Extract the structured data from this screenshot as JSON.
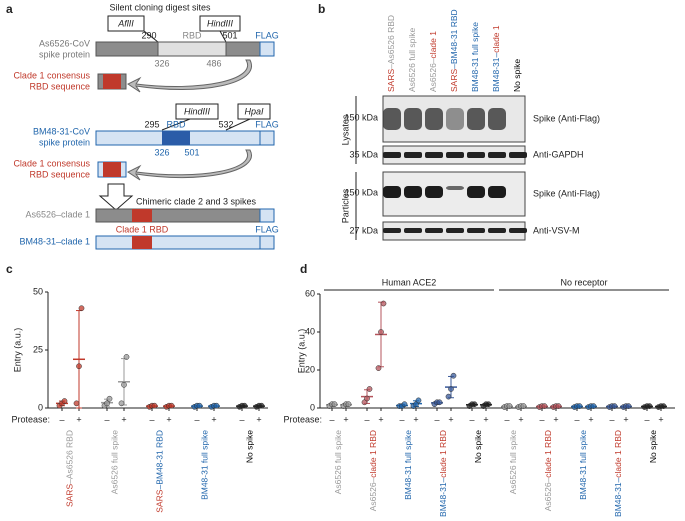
{
  "panels": [
    "a",
    "b",
    "c",
    "d"
  ],
  "diagram_a": {
    "title": "Silent cloning digest sites",
    "spike1": {
      "name": [
        "As6526-CoV",
        "spike protein"
      ],
      "sites": [
        "AflII",
        "HindIII"
      ],
      "start": 290,
      "rbd": "RBD",
      "end": 501,
      "rbd_start": 326,
      "rbd_end": 486,
      "flag": "FLAG"
    },
    "insert1": [
      "Clade 1 consensus",
      "RBD sequence"
    ],
    "spike2": {
      "name": [
        "BM48-31-CoV",
        "spike protein"
      ],
      "sites": [
        "HindIII",
        "HpaI"
      ],
      "start": 295,
      "rbd": "RBD",
      "end": 532,
      "rbd_start": 326,
      "rbd_end": 501,
      "flag": "FLAG"
    },
    "insert2": [
      "Clade 1 consensus",
      "RBD sequence"
    ],
    "chimera_title": "Chimeric clade 2 and 3 spikes",
    "chimera1": "As6526–clade 1",
    "chimera_rbd": "Clade 1 RBD",
    "chimera2": "BM48-31–clade 1",
    "chimera_flag": "FLAG"
  },
  "blot_b": {
    "lanes": [
      [
        {
          "text": "SARS",
          "color": "#c0392b"
        },
        {
          "text": "–As6526 RBD",
          "color": "#999999"
        }
      ],
      [
        {
          "text": "As6526 full spike",
          "color": "#999999"
        }
      ],
      [
        {
          "text": "As6526–",
          "color": "#999999"
        },
        {
          "text": "clade 1",
          "color": "#c0392b"
        }
      ],
      [
        {
          "text": "SARS",
          "color": "#c0392b"
        },
        {
          "text": "–BM48-31 RBD",
          "color": "#2166ac"
        }
      ],
      [
        {
          "text": "BM48-31 full spike",
          "color": "#2166ac"
        }
      ],
      [
        {
          "text": "BM48-31–",
          "color": "#2166ac"
        },
        {
          "text": "clade 1",
          "color": "#c0392b"
        }
      ],
      [
        {
          "text": "No spike",
          "color": "#000000"
        }
      ]
    ],
    "sections": [
      "Lysates",
      "Particles"
    ],
    "sizes": [
      "150 kDa",
      "35 kDa",
      "150 kDa",
      "27 kDa"
    ],
    "antibodies": [
      "Spike (Anti-Flag)",
      "Anti-GAPDH",
      "Spike (Anti-Flag)",
      "Anti-VSV-M"
    ]
  },
  "chart_data": [
    {
      "type": "dotplot",
      "y_label": "Entry (a.u.)",
      "ylim": [
        0,
        50
      ],
      "yticks": [
        0,
        25,
        50
      ],
      "condition_title": "Protease:",
      "conditions": [
        "–",
        "+"
      ],
      "groups": [
        {
          "label": [
            {
              "text": "SARS",
              "color": "#c0392b"
            },
            {
              "text": "–As6526 RBD",
              "color": "#999999"
            }
          ],
          "color": "#c0392b",
          "series": [
            {
              "points": [
                1,
                2,
                3
              ],
              "mean": 2,
              "sd": 1
            },
            {
              "points": [
                2,
                18,
                43
              ],
              "mean": 21,
              "sd": 21
            }
          ]
        },
        {
          "label": [
            {
              "text": "As6526 full spike",
              "color": "#999999"
            }
          ],
          "color": "#999999",
          "series": [
            {
              "points": [
                1,
                2,
                4
              ],
              "mean": 2.3,
              "sd": 1.5
            },
            {
              "points": [
                2,
                10,
                22
              ],
              "mean": 11.3,
              "sd": 10
            }
          ]
        },
        {
          "label": [
            {
              "text": "SARS",
              "color": "#c0392b"
            },
            {
              "text": "–BM48-31 RBD",
              "color": "#2166ac"
            }
          ],
          "color": "#c0392b",
          "series": [
            {
              "points": [
                0.5,
                1,
                1
              ],
              "mean": 0.8,
              "sd": 0.3
            },
            {
              "points": [
                0.5,
                1,
                1
              ],
              "mean": 0.8,
              "sd": 0.3
            }
          ]
        },
        {
          "label": [
            {
              "text": "BM48-31 full spike",
              "color": "#2166ac"
            }
          ],
          "color": "#2166ac",
          "series": [
            {
              "points": [
                0.5,
                1,
                1
              ],
              "mean": 0.8,
              "sd": 0.3
            },
            {
              "points": [
                0.5,
                1,
                1
              ],
              "mean": 0.8,
              "sd": 0.3
            }
          ]
        },
        {
          "label": [
            {
              "text": "No spike",
              "color": "#000000"
            }
          ],
          "color": "#222222",
          "series": [
            {
              "points": [
                0.5,
                1,
                1
              ],
              "mean": 0.8,
              "sd": 0.3
            },
            {
              "points": [
                0.5,
                1,
                1
              ],
              "mean": 0.8,
              "sd": 0.3
            }
          ]
        }
      ]
    },
    {
      "type": "dotplot",
      "y_label": "Entry (a.u.)",
      "ylim": [
        0,
        60
      ],
      "yticks": [
        0,
        20,
        40,
        60
      ],
      "condition_title": "Protease:",
      "conditions": [
        "–",
        "+"
      ],
      "receptors": [
        {
          "label": "Human ACE2",
          "groups": [
            {
              "label": [
                {
                  "text": "As6526 full spike",
                  "color": "#999999"
                }
              ],
              "color": "#999999",
              "series": [
                {
                  "points": [
                    1,
                    2,
                    2
                  ],
                  "mean": 1.7,
                  "sd": 0.6
                },
                {
                  "points": [
                    1,
                    2,
                    2
                  ],
                  "mean": 1.7,
                  "sd": 0.6
                }
              ]
            },
            {
              "label": [
                {
                  "text": "As6526–",
                  "color": "#999999"
                },
                {
                  "text": "clade 1 RBD",
                  "color": "#c0392b"
                }
              ],
              "color": "#b5545c",
              "series": [
                {
                  "points": [
                    3,
                    5,
                    10
                  ],
                  "mean": 6,
                  "sd": 3.6
                },
                {
                  "points": [
                    21,
                    40,
                    55
                  ],
                  "mean": 38.7,
                  "sd": 17
                }
              ]
            },
            {
              "label": [
                {
                  "text": "BM48-31 full spike",
                  "color": "#2166ac"
                }
              ],
              "color": "#2166ac",
              "series": [
                {
                  "points": [
                    1,
                    1,
                    2
                  ],
                  "mean": 1.3,
                  "sd": 0.6
                },
                {
                  "points": [
                    1,
                    2,
                    4
                  ],
                  "mean": 2.3,
                  "sd": 1.5
                }
              ]
            },
            {
              "label": [
                {
                  "text": "BM48-31–",
                  "color": "#2166ac"
                },
                {
                  "text": "clade 1 RBD",
                  "color": "#c0392b"
                }
              ],
              "color": "#3a5a9a",
              "series": [
                {
                  "points": [
                    2,
                    3,
                    3
                  ],
                  "mean": 2.7,
                  "sd": 0.6
                },
                {
                  "points": [
                    6,
                    10,
                    17
                  ],
                  "mean": 11,
                  "sd": 5.6
                }
              ]
            },
            {
              "label": [
                {
                  "text": "No spike",
                  "color": "#000000"
                }
              ],
              "color": "#222222",
              "series": [
                {
                  "points": [
                    1,
                    2,
                    2
                  ],
                  "mean": 1.7,
                  "sd": 0.6
                },
                {
                  "points": [
                    1,
                    2,
                    2
                  ],
                  "mean": 1.7,
                  "sd": 0.6
                }
              ]
            }
          ]
        },
        {
          "label": "No receptor",
          "groups": [
            {
              "label": [
                {
                  "text": "As6526 full spike",
                  "color": "#999999"
                }
              ],
              "color": "#999999",
              "series": [
                {
                  "points": [
                    0.5,
                    1,
                    1
                  ],
                  "mean": 0.8,
                  "sd": 0.3
                },
                {
                  "points": [
                    0.5,
                    1,
                    1
                  ],
                  "mean": 0.8,
                  "sd": 0.3
                }
              ]
            },
            {
              "label": [
                {
                  "text": "As6526–",
                  "color": "#999999"
                },
                {
                  "text": "clade 1 RBD",
                  "color": "#c0392b"
                }
              ],
              "color": "#b5545c",
              "series": [
                {
                  "points": [
                    0.5,
                    1,
                    1
                  ],
                  "mean": 0.8,
                  "sd": 0.3
                },
                {
                  "points": [
                    0.5,
                    1,
                    1
                  ],
                  "mean": 0.8,
                  "sd": 0.3
                }
              ]
            },
            {
              "label": [
                {
                  "text": "BM48-31 full spike",
                  "color": "#2166ac"
                }
              ],
              "color": "#2166ac",
              "series": [
                {
                  "points": [
                    0.5,
                    1,
                    1
                  ],
                  "mean": 0.8,
                  "sd": 0.3
                },
                {
                  "points": [
                    0.5,
                    1,
                    1
                  ],
                  "mean": 0.8,
                  "sd": 0.3
                }
              ]
            },
            {
              "label": [
                {
                  "text": "BM48-31–",
                  "color": "#2166ac"
                },
                {
                  "text": "clade 1 RBD",
                  "color": "#c0392b"
                }
              ],
              "color": "#3a5a9a",
              "series": [
                {
                  "points": [
                    0.5,
                    1,
                    1
                  ],
                  "mean": 0.8,
                  "sd": 0.3
                },
                {
                  "points": [
                    0.5,
                    1,
                    1
                  ],
                  "mean": 0.8,
                  "sd": 0.3
                }
              ]
            },
            {
              "label": [
                {
                  "text": "No spike",
                  "color": "#000000"
                }
              ],
              "color": "#222222",
              "series": [
                {
                  "points": [
                    0.5,
                    1,
                    1
                  ],
                  "mean": 0.8,
                  "sd": 0.3
                },
                {
                  "points": [
                    0.5,
                    1,
                    1
                  ],
                  "mean": 0.8,
                  "sd": 0.3
                }
              ]
            }
          ]
        }
      ]
    }
  ]
}
